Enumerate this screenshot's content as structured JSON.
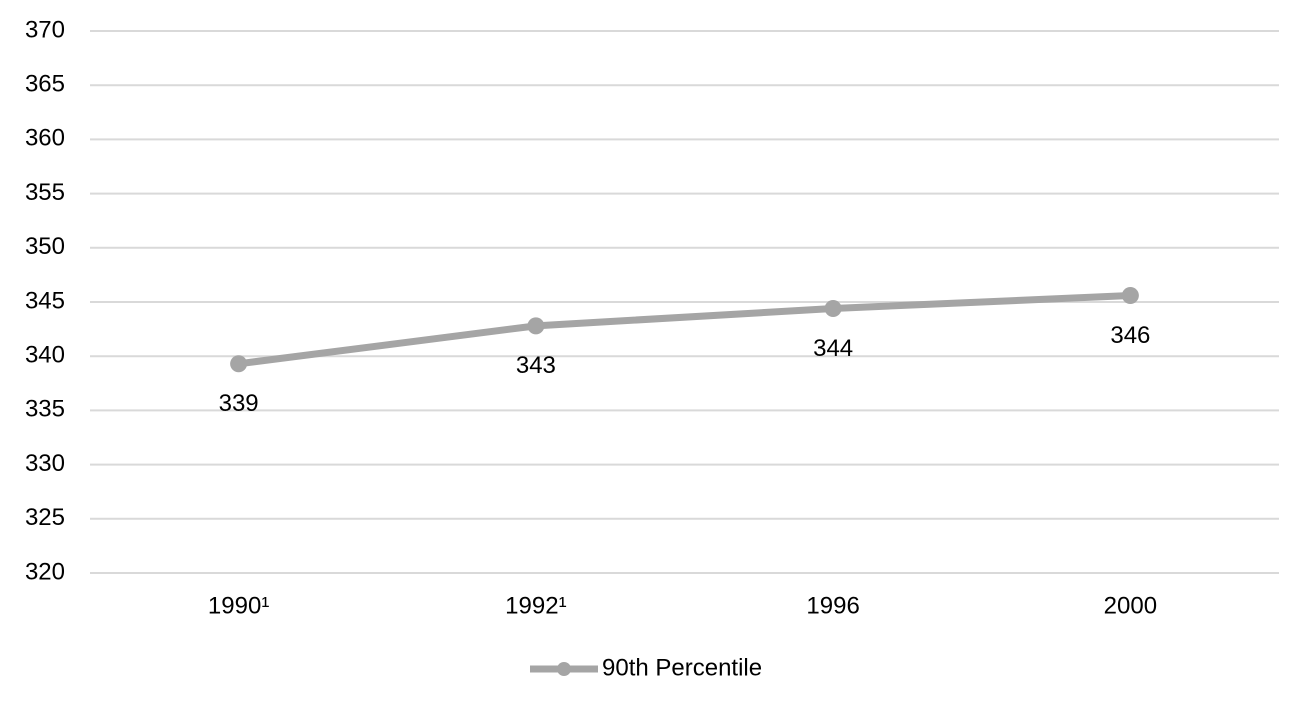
{
  "chart_data": {
    "type": "line",
    "categories": [
      "1990¹",
      "1992¹",
      "1996",
      "2000"
    ],
    "series": [
      {
        "name": "90th Percentile",
        "color": "#a5a5a5",
        "values": [
          339.3,
          342.8,
          344.4,
          345.6
        ],
        "value_labels": [
          "339",
          "343",
          "344",
          "346"
        ]
      }
    ],
    "ylim": [
      320,
      370
    ],
    "yticks": [
      320,
      325,
      330,
      335,
      340,
      345,
      350,
      355,
      360,
      365,
      370
    ],
    "grid": true,
    "legend": "bottom"
  }
}
